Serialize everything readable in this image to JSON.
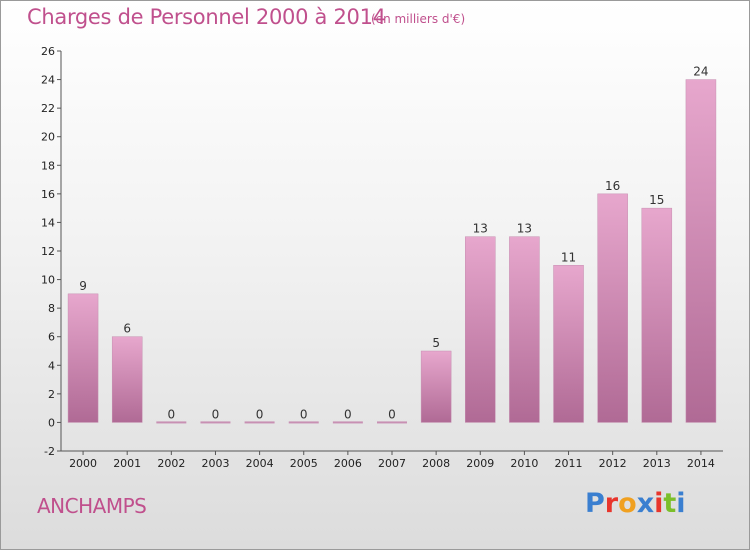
{
  "header": {
    "title": "Charges de Personnel 2000 à 2014",
    "subtitle": "(en milliers d'€)"
  },
  "footer": {
    "commune": "ANCHAMPS",
    "brand_letters": [
      "P",
      "r",
      "o",
      "x",
      "i",
      "t",
      "i"
    ],
    "brand_colors": [
      "#3a7fd0",
      "#e8352c",
      "#f0a020",
      "#3a7fd0",
      "#e8352c",
      "#7bbf2a",
      "#3a7fd0"
    ]
  },
  "colors": {
    "bar": "#d88fba",
    "bar_dark": "#b06a95",
    "title": "#c0508d"
  },
  "chart_data": {
    "type": "bar",
    "categories": [
      "2000",
      "2001",
      "2002",
      "2003",
      "2004",
      "2005",
      "2006",
      "2007",
      "2008",
      "2009",
      "2010",
      "2011",
      "2012",
      "2013",
      "2014"
    ],
    "values": [
      9,
      6,
      0,
      0,
      0,
      0,
      0,
      0,
      5,
      13,
      13,
      11,
      16,
      15,
      24
    ],
    "value_labels": [
      "9",
      "6",
      "0",
      "0",
      "0",
      "0",
      "0",
      "0",
      "5",
      "13",
      "13",
      "11",
      "16",
      "15",
      "24"
    ],
    "y_ticks": [
      "-2",
      "0",
      "2",
      "4",
      "6",
      "8",
      "10",
      "12",
      "14",
      "16",
      "18",
      "20",
      "22",
      "24",
      "26"
    ],
    "ylim": [
      -2,
      26
    ],
    "grid": false
  }
}
